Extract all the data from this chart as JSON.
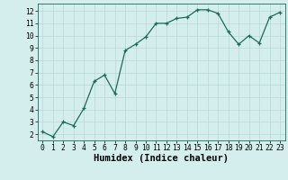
{
  "x": [
    0,
    1,
    2,
    3,
    4,
    5,
    6,
    7,
    8,
    9,
    10,
    11,
    12,
    13,
    14,
    15,
    16,
    17,
    18,
    19,
    20,
    21,
    22,
    23
  ],
  "y": [
    2.2,
    1.8,
    3.0,
    2.7,
    4.1,
    6.3,
    6.8,
    5.3,
    8.8,
    9.3,
    9.9,
    11.0,
    11.0,
    11.4,
    11.5,
    12.1,
    12.1,
    11.8,
    10.3,
    9.3,
    10.0,
    9.4,
    11.5,
    11.9
  ],
  "xlabel": "Humidex (Indice chaleur)",
  "ylim": [
    1.5,
    12.6
  ],
  "xlim": [
    -0.5,
    23.5
  ],
  "yticks": [
    2,
    3,
    4,
    5,
    6,
    7,
    8,
    9,
    10,
    11,
    12
  ],
  "xticks": [
    0,
    1,
    2,
    3,
    4,
    5,
    6,
    7,
    8,
    9,
    10,
    11,
    12,
    13,
    14,
    15,
    16,
    17,
    18,
    19,
    20,
    21,
    22,
    23
  ],
  "line_color": "#1a6b5a",
  "marker_color": "#1a6b5a",
  "bg_color": "#d4eeee",
  "grid_color": "#b8d8d8",
  "tick_label_fontsize": 5.8,
  "xlabel_fontsize": 7.5,
  "xlabel_fontweight": "bold"
}
